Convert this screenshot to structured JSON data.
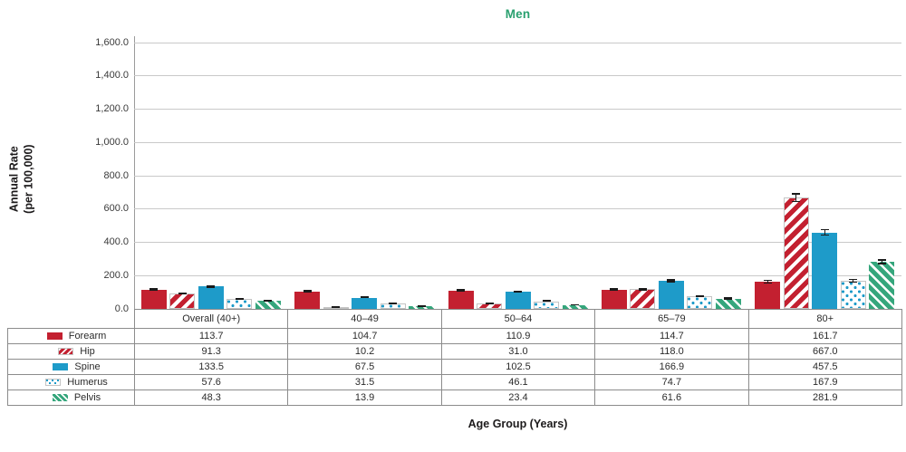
{
  "title": "Men",
  "y_axis_title_line1": "Annual Rate",
  "y_axis_title_line2": "(per 100,000)",
  "x_axis_title": "Age Group (Years)",
  "colors": {
    "title_green": "#2aa06f",
    "forearm_red": "#c32030",
    "spine_blue": "#1e9bc9",
    "pelvis_green": "#35a67c",
    "gridline": "#c9c9c9",
    "axis_line": "#9b9b9b",
    "table_border": "#8c8c8c"
  },
  "chart_data": {
    "type": "bar",
    "title": "Men",
    "xlabel": "Age Group (Years)",
    "ylabel": "Annual Rate (per 100,000)",
    "ylim": [
      0,
      1600
    ],
    "ytick_step": 200,
    "ytick_labels": [
      "0.0",
      "200.0",
      "400.0",
      "600.0",
      "800.0",
      "1,000.0",
      "1,200.0",
      "1,400.0",
      "1,600.0"
    ],
    "grid": true,
    "legend_position": "table-left",
    "categories": [
      "Overall (40+)",
      "40–49",
      "50–64",
      "65–79",
      "80+"
    ],
    "series": [
      {
        "name": "Forearm",
        "pattern": "solid-red",
        "values": [
          113.7,
          104.7,
          110.9,
          114.7,
          161.7
        ],
        "errors": [
          7,
          5,
          6,
          7,
          11
        ]
      },
      {
        "name": "Hip",
        "pattern": "red-diagonal-stripes",
        "values": [
          91.3,
          10.2,
          31.0,
          118.0,
          667.0
        ],
        "errors": [
          6,
          2,
          3,
          7,
          26
        ]
      },
      {
        "name": "Spine",
        "pattern": "solid-blue",
        "values": [
          133.5,
          67.5,
          102.5,
          166.9,
          457.5
        ],
        "errors": [
          7,
          4,
          6,
          8,
          19
        ]
      },
      {
        "name": "Humerus",
        "pattern": "blue-polka-dots",
        "values": [
          57.6,
          31.5,
          46.1,
          74.7,
          167.9
        ],
        "errors": [
          5,
          3,
          4,
          6,
          11
        ]
      },
      {
        "name": "Pelvis",
        "pattern": "green-diagonal-stripes",
        "values": [
          48.3,
          13.9,
          23.4,
          61.6,
          281.9
        ],
        "errors": [
          5,
          2,
          3,
          5,
          13
        ]
      }
    ]
  }
}
